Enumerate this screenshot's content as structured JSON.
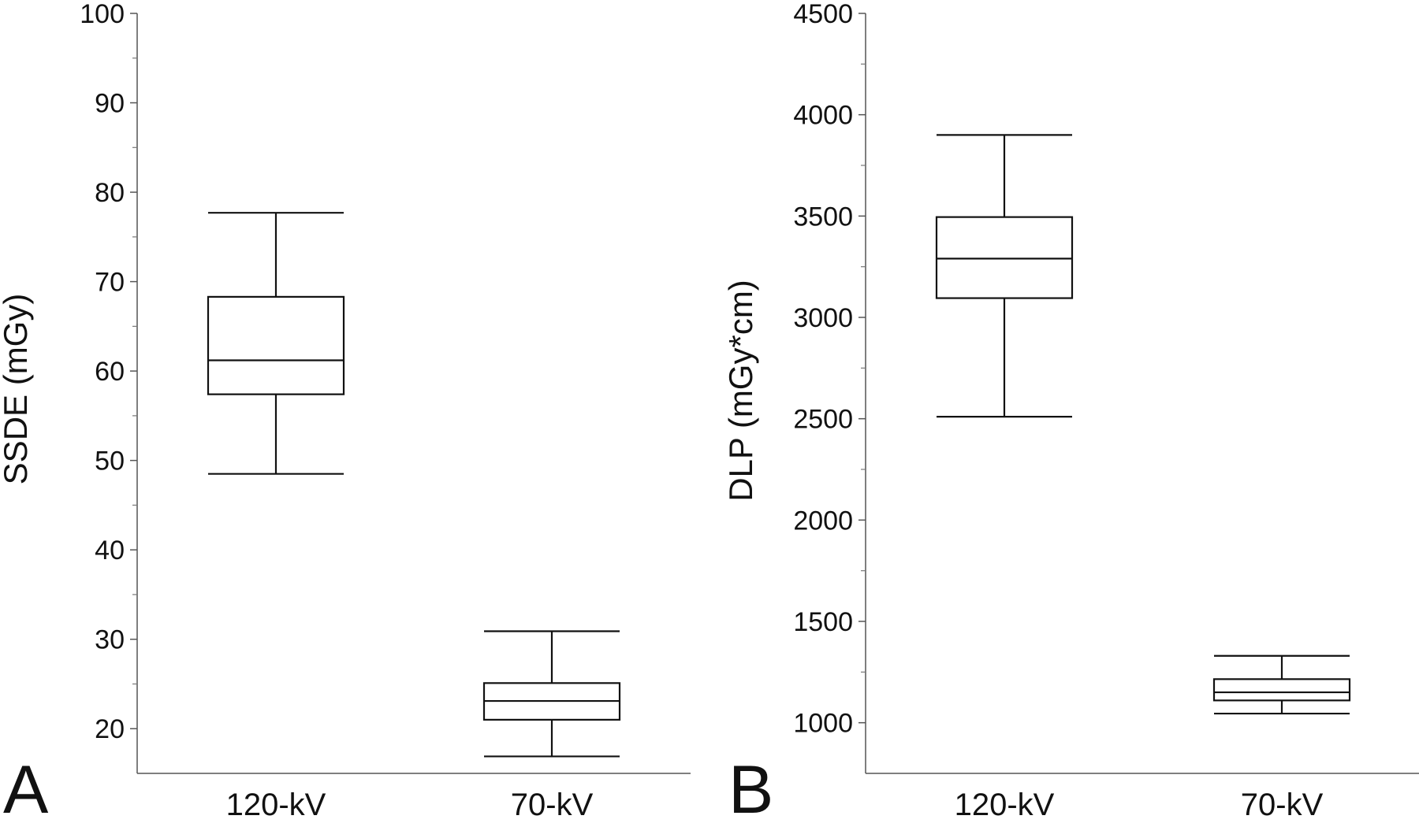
{
  "chart_data": [
    {
      "type": "box",
      "panel_label": "A",
      "title": "",
      "xlabel": "",
      "ylabel": "SSDE (mGy)",
      "ylim": [
        15,
        100
      ],
      "yticks": [
        20,
        30,
        40,
        50,
        60,
        70,
        80,
        90,
        100
      ],
      "minor_ticks": true,
      "grid": false,
      "categories": [
        "120-kV",
        "70-kV"
      ],
      "boxes": [
        {
          "category": "120-kV",
          "whisker_low": 48.5,
          "q1": 57.4,
          "median": 61.2,
          "q3": 68.3,
          "whisker_high": 77.7
        },
        {
          "category": "70-kV",
          "whisker_low": 16.9,
          "q1": 21.0,
          "median": 23.1,
          "q3": 25.1,
          "whisker_high": 30.9
        }
      ]
    },
    {
      "type": "box",
      "panel_label": "B",
      "title": "",
      "xlabel": "",
      "ylabel": "DLP (mGy*cm)",
      "ylim": [
        750,
        4500
      ],
      "yticks": [
        1000,
        1500,
        2000,
        2500,
        3000,
        3500,
        4000,
        4500
      ],
      "minor_ticks": true,
      "grid": false,
      "categories": [
        "120-kV",
        "70-kV"
      ],
      "boxes": [
        {
          "category": "120-kV",
          "whisker_low": 2510,
          "q1": 3095,
          "median": 3290,
          "q3": 3495,
          "whisker_high": 3900
        },
        {
          "category": "70-kV",
          "whisker_low": 1045,
          "q1": 1110,
          "median": 1150,
          "q3": 1215,
          "whisker_high": 1330
        }
      ]
    }
  ]
}
